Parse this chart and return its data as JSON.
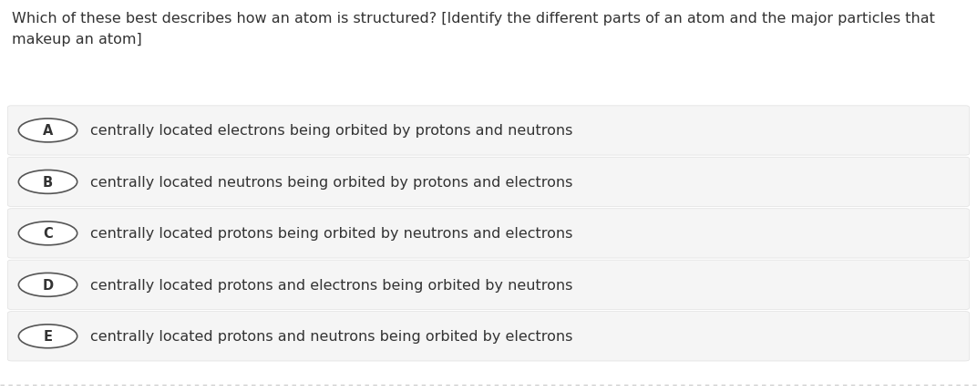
{
  "question": "Which of these best describes how an atom is structured? [Identify the different parts of an atom and the major particles that\nmakeup an atom]",
  "options": [
    {
      "label": "A",
      "text": "centrally located electrons being orbited by protons and neutrons"
    },
    {
      "label": "B",
      "text": "centrally located neutrons being orbited by protons and electrons"
    },
    {
      "label": "C",
      "text": "centrally located protons being orbited by neutrons and electrons"
    },
    {
      "label": "D",
      "text": "centrally located protons and electrons being orbited by neutrons"
    },
    {
      "label": "E",
      "text": "centrally located protons and neutrons being orbited by electrons"
    }
  ],
  "bg_color": "#ffffff",
  "option_bg_color": "#f5f5f5",
  "option_border_color": "#e0e0e0",
  "question_text_color": "#333333",
  "option_text_color": "#333333",
  "label_circle_color": "#ffffff",
  "label_circle_edge_color": "#555555",
  "bottom_border_color": "#c8c8c8",
  "question_fontsize": 11.5,
  "option_fontsize": 11.5,
  "label_fontsize": 10.5
}
